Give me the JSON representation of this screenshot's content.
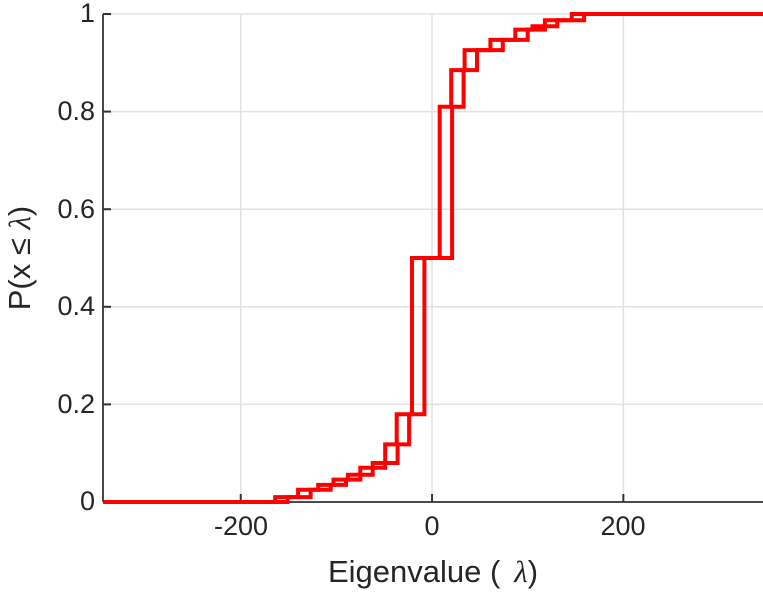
{
  "chart_data": {
    "type": "line",
    "subtype": "step-ecdf",
    "title": "",
    "xlabel": {
      "prefix": "Eigenvalue (",
      "lambda": "λ",
      "suffix": ")"
    },
    "ylabel": {
      "prefix": "P(x ≤ ",
      "lambda": "λ",
      "suffix": ")"
    },
    "axes": {
      "xlim": [
        -344,
        346
      ],
      "ylim": [
        0,
        1
      ],
      "grid": true,
      "tick_dir": "in",
      "legend": "none"
    },
    "x_ticks": [
      {
        "value": -200,
        "label": "-200"
      },
      {
        "value": 0,
        "label": "0"
      },
      {
        "value": 200,
        "label": "200"
      }
    ],
    "y_ticks": [
      {
        "value": 0,
        "label": "0"
      },
      {
        "value": 0.2,
        "label": "0.2"
      },
      {
        "value": 0.4,
        "label": "0.4"
      },
      {
        "value": 0.6,
        "label": "0.6"
      },
      {
        "value": 0.8,
        "label": "0.8"
      },
      {
        "value": 1,
        "label": "1"
      }
    ],
    "style": {
      "line_color": "#ff0000",
      "line_width": 4,
      "grid_color": "#e2e2e2",
      "axis_color": "#4a4a4a",
      "tick_color": "#333333",
      "text_color": "#262626",
      "background": "#ffffff"
    },
    "series": [
      {
        "name": "ecdf-curve-1",
        "color": "#ff0000",
        "steps": [
          [
            -164,
            0.01
          ],
          [
            -140,
            0.025
          ],
          [
            -119,
            0.035
          ],
          [
            -103,
            0.046
          ],
          [
            -88,
            0.056
          ],
          [
            -75,
            0.07
          ],
          [
            -62,
            0.08
          ],
          [
            -49,
            0.118
          ],
          [
            -37,
            0.18
          ],
          [
            -21,
            0.5
          ],
          [
            8,
            0.81
          ],
          [
            20,
            0.885
          ],
          [
            34,
            0.926
          ],
          [
            61,
            0.947
          ],
          [
            87,
            0.968
          ],
          [
            105,
            0.975
          ],
          [
            118,
            0.987
          ],
          [
            146,
            1.0
          ]
        ]
      },
      {
        "name": "ecdf-curve-2",
        "color": "#ff0000",
        "steps": [
          [
            -151,
            0.01
          ],
          [
            -127,
            0.025
          ],
          [
            -106,
            0.035
          ],
          [
            -90,
            0.046
          ],
          [
            -75,
            0.056
          ],
          [
            -62,
            0.07
          ],
          [
            -49,
            0.08
          ],
          [
            -36,
            0.118
          ],
          [
            -24,
            0.18
          ],
          [
            -8,
            0.5
          ],
          [
            21,
            0.81
          ],
          [
            33,
            0.885
          ],
          [
            47,
            0.926
          ],
          [
            74,
            0.947
          ],
          [
            100,
            0.968
          ],
          [
            118,
            0.975
          ],
          [
            131,
            0.987
          ],
          [
            159,
            1.0
          ]
        ]
      }
    ]
  }
}
